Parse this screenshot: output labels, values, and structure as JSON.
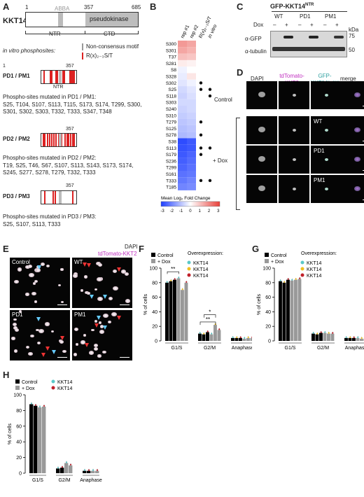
{
  "panelA": {
    "letter": "A",
    "protein": "KKT14",
    "pos_start": "1",
    "pos_357": "357",
    "pos_685": "685",
    "abba": "ABBA",
    "pseudokinase": "pseudokinase",
    "ntr": "NTR",
    "ctd": "CTD",
    "invitro": "in vitro phosphosites:",
    "legend_noncons": "Non-consensus motif",
    "legend_cons": "R(x)₂₋₃S/T",
    "pm1": {
      "title": "PD1 / PM1",
      "end": "357",
      "mut_title": "Phospho-sites mutated in PD1 / PM1:",
      "sites": "S25, T104, S107, S113, T115, S173, S174, T299, S300, S301, S302, S303, T332, T333, S347, T348"
    },
    "pm2": {
      "title": "PD2 / PM2",
      "end": "357",
      "mut_title": "Phospho-sites mutated in PD2 / PM2:",
      "sites": "T19, S25, T46, S67, S107, S113, S143, S173, S174, S245, S277, S278, T279, T332, T333"
    },
    "pm3": {
      "title": "PD3 / PM3",
      "end": "357",
      "mut_title": "Phospho-sites mutated in PD3 / PM3:",
      "sites": "S25, S107, S113, T333"
    }
  },
  "panelB": {
    "letter": "B",
    "cols": [
      "rep #1",
      "rep #2",
      "R(x)₂₋₃S/T",
      "in vitro"
    ],
    "rows": [
      {
        "site": "S300",
        "v1": 1.6,
        "v2": 1.4,
        "cons": false,
        "vit": false
      },
      {
        "site": "S301",
        "v1": 1.4,
        "v2": 1.2,
        "cons": false,
        "vit": false
      },
      {
        "site": "T37",
        "v1": 1.0,
        "v2": 0.9,
        "cons": false,
        "vit": false
      },
      {
        "site": "S281",
        "v1": 0.3,
        "v2": 0.2,
        "cons": false,
        "vit": false
      },
      {
        "site": "S8",
        "v1": -0.2,
        "v2": 0.0,
        "cons": false,
        "vit": false
      },
      {
        "site": "S328",
        "v1": -0.3,
        "v2": 0.4,
        "cons": false,
        "vit": false
      },
      {
        "site": "S302",
        "v1": -0.4,
        "v2": -0.2,
        "cons": true,
        "vit": false
      },
      {
        "site": "S25",
        "v1": -0.6,
        "v2": -0.4,
        "cons": true,
        "vit": true
      },
      {
        "site": "S118",
        "v1": -0.7,
        "v2": -0.5,
        "cons": false,
        "vit": true
      },
      {
        "site": "S303",
        "v1": -0.6,
        "v2": -0.6,
        "cons": false,
        "vit": false
      },
      {
        "site": "S240",
        "v1": -0.7,
        "v2": -0.6,
        "cons": false,
        "vit": false
      },
      {
        "site": "S310",
        "v1": -0.8,
        "v2": -0.7,
        "cons": false,
        "vit": false
      },
      {
        "site": "T279",
        "v1": -0.9,
        "v2": -0.8,
        "cons": true,
        "vit": false
      },
      {
        "site": "S125",
        "v1": -1.0,
        "v2": -0.9,
        "cons": false,
        "vit": false
      },
      {
        "site": "S278",
        "v1": -1.1,
        "v2": -1.0,
        "cons": true,
        "vit": false
      },
      {
        "site": "S38",
        "v1": -2.8,
        "v2": -2.6,
        "cons": false,
        "vit": false
      },
      {
        "site": "S113",
        "v1": -2.7,
        "v2": -2.6,
        "cons": true,
        "vit": true
      },
      {
        "site": "S179",
        "v1": -2.6,
        "v2": -2.4,
        "cons": true,
        "vit": false
      },
      {
        "site": "S236",
        "v1": -2.5,
        "v2": -2.3,
        "cons": false,
        "vit": false
      },
      {
        "site": "T299",
        "v1": -2.4,
        "v2": -2.2,
        "cons": false,
        "vit": false
      },
      {
        "site": "S161",
        "v1": -2.2,
        "v2": -2.1,
        "cons": false,
        "vit": false
      },
      {
        "site": "T333",
        "v1": -2.1,
        "v2": -1.9,
        "cons": true,
        "vit": true
      },
      {
        "site": "T185",
        "v1": -1.9,
        "v2": -1.8,
        "cons": false,
        "vit": false
      }
    ],
    "legend_title": "Mean Log₂ Fold Change",
    "legend_ticks": [
      "-3",
      "-2",
      "-1",
      "0",
      "1",
      "2",
      "3"
    ],
    "colors": {
      "low": "#1f3fff",
      "mid": "#ffffff",
      "high": "#e8403a"
    }
  },
  "panelC": {
    "letter": "C",
    "title": "GFP-KKT14",
    "title_sup": "NTR",
    "groups": [
      "WT",
      "PD1",
      "PM1"
    ],
    "dox": "Dox",
    "signs": [
      "–",
      "+",
      "–",
      "+",
      "–",
      "+"
    ],
    "kda": "kDa",
    "m75": "75",
    "m50": "50",
    "row1": "α-GFP",
    "row2": "α-tubulin"
  },
  "panelD": {
    "letter": "D",
    "cols": [
      "DAPI",
      "tdTomato-KKT2",
      "GFP-KKT14²⁻³⁵⁷",
      "merge"
    ],
    "rows": [
      "Control",
      "WT",
      "PD1",
      "PM1"
    ],
    "plus_dox": "+ Dox"
  },
  "panelE": {
    "letter": "E",
    "legend1": "DAPI",
    "legend2": "tdTomato-KKT2",
    "labels": [
      "Control",
      "WT",
      "PD1",
      "PM1"
    ]
  },
  "bars": {
    "ylabel": "% of cells",
    "yticks": [
      "0",
      "20",
      "40",
      "60",
      "80",
      "100"
    ],
    "categories": [
      "G1/S",
      "G2/M",
      "Anaphase"
    ],
    "control": "Control",
    "dox": "+ Dox",
    "overexpression": "Overexpression:"
  },
  "panelF": {
    "letter": "F",
    "legend": [
      {
        "name": "KKT14",
        "sup": "NTR PD1",
        "color": "#5bc8c8"
      },
      {
        "name": "KKT14",
        "sup": "NTR PD2",
        "color": "#f0c020"
      },
      {
        "name": "KKT14",
        "sup": "NTR PD3",
        "color": "#c0202a"
      }
    ],
    "sig1": "**",
    "sig2": "*",
    "sig3": "**"
  },
  "panelG": {
    "letter": "G",
    "legend": [
      {
        "name": "KKT14",
        "sup": "NTR PM1",
        "color": "#5bc8c8"
      },
      {
        "name": "KKT14",
        "sup": "NTR PM2",
        "color": "#f0c020"
      },
      {
        "name": "KKT14",
        "sup": "NTR PM3",
        "color": "#c0202a"
      }
    ]
  },
  "panelH": {
    "letter": "H",
    "legend": [
      {
        "name": "KKT14",
        "sup": "NTR",
        "color": "#5bc8c8"
      },
      {
        "name": "KKT14",
        "sup": "CTD",
        "color": "#c0202a"
      }
    ]
  },
  "chart_data": [
    {
      "type": "bar",
      "panel": "F",
      "categories": [
        "G1/S",
        "G2/M",
        "Anaphase"
      ],
      "ylabel": "% of cells",
      "ylim": [
        0,
        100
      ],
      "series": [
        {
          "name": "Control",
          "values": [
            [
              80,
              82,
              84
            ],
            [
              10,
              9,
              12
            ],
            [
              4,
              4,
              4
            ]
          ]
        },
        {
          "name": "+ Dox",
          "values": [
            [
              86,
              70,
              80
            ],
            [
              9,
              22,
              15
            ],
            [
              3,
              4,
              4
            ]
          ]
        }
      ]
    },
    {
      "type": "bar",
      "panel": "G",
      "categories": [
        "G1/S",
        "G2/M",
        "Anaphase"
      ],
      "ylabel": "% of cells",
      "ylim": [
        0,
        100
      ],
      "series": [
        {
          "name": "Control",
          "values": [
            [
              82,
              80,
              84
            ],
            [
              10,
              9,
              11
            ],
            [
              4,
              4,
              4
            ]
          ]
        },
        {
          "name": "+ Dox",
          "values": [
            [
              83,
              84,
              85
            ],
            [
              11,
              10,
              10
            ],
            [
              4,
              3,
              3
            ]
          ]
        }
      ]
    },
    {
      "type": "bar",
      "panel": "H",
      "categories": [
        "G1/S",
        "G2/M",
        "Anaphase"
      ],
      "ylabel": "% of cells",
      "ylim": [
        0,
        100
      ],
      "series": [
        {
          "name": "Control",
          "values": [
            [
              88,
              86
            ],
            [
              6,
              7
            ],
            [
              3,
              3
            ]
          ]
        },
        {
          "name": "+ Dox",
          "values": [
            [
              84,
              85
            ],
            [
              13,
              10
            ],
            [
              3,
              3
            ]
          ]
        }
      ]
    }
  ]
}
